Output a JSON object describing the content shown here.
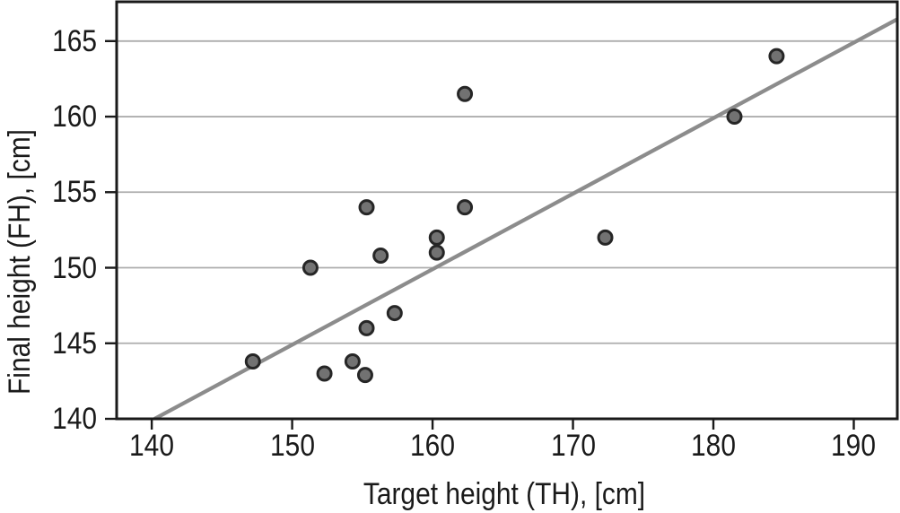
{
  "figure": {
    "kind": "scatter-plot-with-trend-line",
    "background_color": "#ffffff"
  },
  "chart_data": {
    "type": "scatter",
    "title": "",
    "xlabel": "Target height (TH), [cm]",
    "ylabel": "Final height (FH), [cm]",
    "x_ticks": [
      140,
      150,
      160,
      170,
      180,
      190
    ],
    "y_ticks": [
      140,
      145,
      150,
      155,
      160,
      165
    ],
    "xlim": [
      137.5,
      193.1
    ],
    "ylim": [
      140,
      167.6
    ],
    "grid": "horizontal-only",
    "legend": "none",
    "points": [
      [
        147.2,
        143.8
      ],
      [
        151.3,
        150.0
      ],
      [
        152.3,
        143.0
      ],
      [
        154.3,
        143.8
      ],
      [
        155.2,
        142.9
      ],
      [
        155.3,
        146.0
      ],
      [
        155.3,
        154.0
      ],
      [
        156.3,
        150.8
      ],
      [
        157.3,
        147.0
      ],
      [
        160.3,
        151.0
      ],
      [
        160.3,
        152.0
      ],
      [
        162.3,
        154.0
      ],
      [
        162.3,
        161.5
      ],
      [
        172.3,
        152.0
      ],
      [
        181.5,
        160.0
      ],
      [
        184.5,
        164.0
      ]
    ],
    "trend_line": {
      "slope": 0.5,
      "intercept": 69.9,
      "x_start": 140.2
    },
    "style": {
      "point_fill": "#727272",
      "point_stroke": "#262626",
      "line_color": "#8c8c8c",
      "grid_color": "#adadad",
      "axis_color": "#1a1a1a",
      "text_color": "#1a1a1a"
    }
  }
}
